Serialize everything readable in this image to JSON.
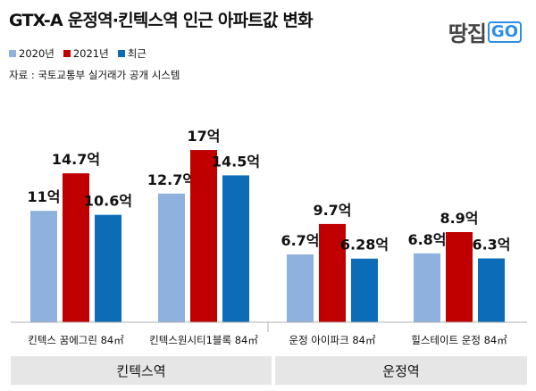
{
  "header": {
    "title": "GTX-A 운정역·킨텍스역 인근 아파트값 변화",
    "source": "자료 : 국토교통부 실거래가 공개 시스템",
    "logo_text": "땅집",
    "logo_go": "GO"
  },
  "colors": {
    "series_2020": "#8eb1dd",
    "series_2021": "#c00000",
    "series_recent": "#0d6cb8",
    "group_bg": "#e6e6e6"
  },
  "chart_data": {
    "type": "bar",
    "title": "GTX-A 운정역·킨텍스역 인근 아파트값 변화",
    "xlabel": "",
    "ylabel": "",
    "ylim": [
      0,
      18
    ],
    "grid": false,
    "legend_position": "top-left",
    "categories": [
      "킨텍스 꿈에그린 84㎡",
      "킨텍스원시티1블록 84㎡",
      "운정 아이파크 84㎡",
      "힐스테이트 운정 84㎡"
    ],
    "groups": [
      {
        "label": "킨텍스역",
        "categories": [
          0,
          1
        ]
      },
      {
        "label": "운정역",
        "categories": [
          2,
          3
        ]
      }
    ],
    "series": [
      {
        "name": "2020년",
        "values": [
          11,
          12.7,
          6.7,
          6.8
        ],
        "labels": [
          "11억",
          "12.7억",
          "6.7억",
          "6.8억"
        ]
      },
      {
        "name": "2021년",
        "values": [
          14.7,
          17,
          9.7,
          8.9
        ],
        "labels": [
          "14.7억",
          "17억",
          "9.7억",
          "8.9억"
        ]
      },
      {
        "name": "최근",
        "values": [
          10.6,
          14.5,
          6.28,
          6.3
        ],
        "labels": [
          "10.6억",
          "14.5억",
          "6.28억",
          "6.3억"
        ]
      }
    ]
  }
}
